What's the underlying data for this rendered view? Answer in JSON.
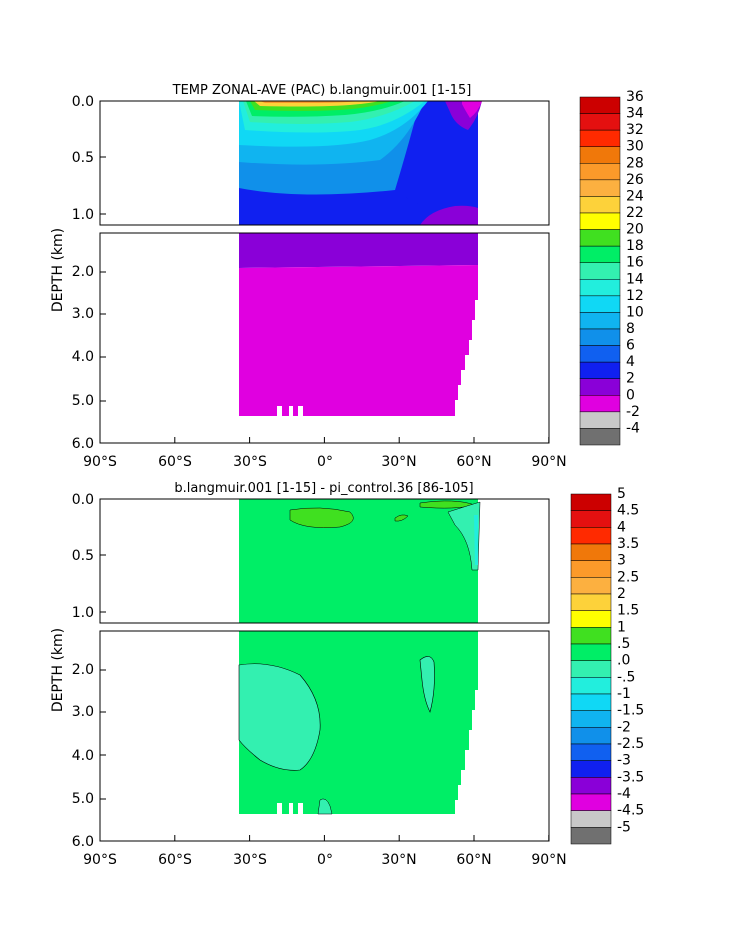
{
  "chart_data": [
    {
      "type": "heatmap",
      "title": "TEMP ZONAL-AVE (PAC) b.langmuir.001 [1-15]",
      "ylabel": "DEPTH (km)",
      "x_ticks": [
        "90°S",
        "60°S",
        "30°S",
        "0°",
        "30°N",
        "60°N",
        "90°N"
      ],
      "x_range": [
        -90,
        90
      ],
      "y_ticks_upper": [
        "0.0",
        "0.5",
        "1.0"
      ],
      "y_ticks_lower": [
        "2.0",
        "3.0",
        "4.0",
        "5.0",
        "6.0"
      ],
      "y_range": [
        0,
        6
      ],
      "data_lat_range": [
        -33,
        62
      ],
      "colorbar_labels": [
        "36",
        "34",
        "32",
        "30",
        "28",
        "26",
        "24",
        "22",
        "20",
        "18",
        "16",
        "14",
        "12",
        "10",
        "8",
        "6",
        "4",
        "2",
        "0",
        "-2",
        "-4"
      ],
      "colorbar_colors": [
        "#cc0000",
        "#e41010",
        "#ff2a00",
        "#f0780a",
        "#fb9a2a",
        "#fcb040",
        "#fdd23a",
        "#ffff00",
        "#40e020",
        "#00ee66",
        "#33f0b0",
        "#22eedd",
        "#10d8f5",
        "#10b4f0",
        "#1090ea",
        "#1060f0",
        "#1020f0",
        "#8a00d8",
        "#e000e0",
        "#c8c8c8",
        "#707070"
      ]
    },
    {
      "type": "heatmap",
      "title": "b.langmuir.001 [1-15] - pi_control.36 [86-105]",
      "ylabel": "DEPTH (km)",
      "x_ticks": [
        "90°S",
        "60°S",
        "30°S",
        "0°",
        "30°N",
        "60°N",
        "90°N"
      ],
      "x_range": [
        -90,
        90
      ],
      "y_ticks_upper": [
        "0.0",
        "0.5",
        "1.0"
      ],
      "y_ticks_lower": [
        "2.0",
        "3.0",
        "4.0",
        "5.0",
        "6.0"
      ],
      "y_range": [
        0,
        6
      ],
      "data_lat_range": [
        -33,
        62
      ],
      "colorbar_labels": [
        "5",
        "4.5",
        "4",
        "3.5",
        "3",
        "2.5",
        "2",
        "1.5",
        "1",
        ".5",
        ".0",
        "-.5",
        "-1",
        "-1.5",
        "-2",
        "-2.5",
        "-3",
        "-3.5",
        "-4",
        "-4.5",
        "-5"
      ],
      "colorbar_colors": [
        "#cc0000",
        "#e41010",
        "#ff2a00",
        "#f0780a",
        "#fb9a2a",
        "#fcb040",
        "#fdd23a",
        "#ffff00",
        "#40e020",
        "#00ee66",
        "#33f0b0",
        "#22eedd",
        "#10d8f5",
        "#10b4f0",
        "#1090ea",
        "#1060f0",
        "#1020f0",
        "#8a00d8",
        "#e000e0",
        "#c8c8c8",
        "#707070"
      ]
    }
  ]
}
